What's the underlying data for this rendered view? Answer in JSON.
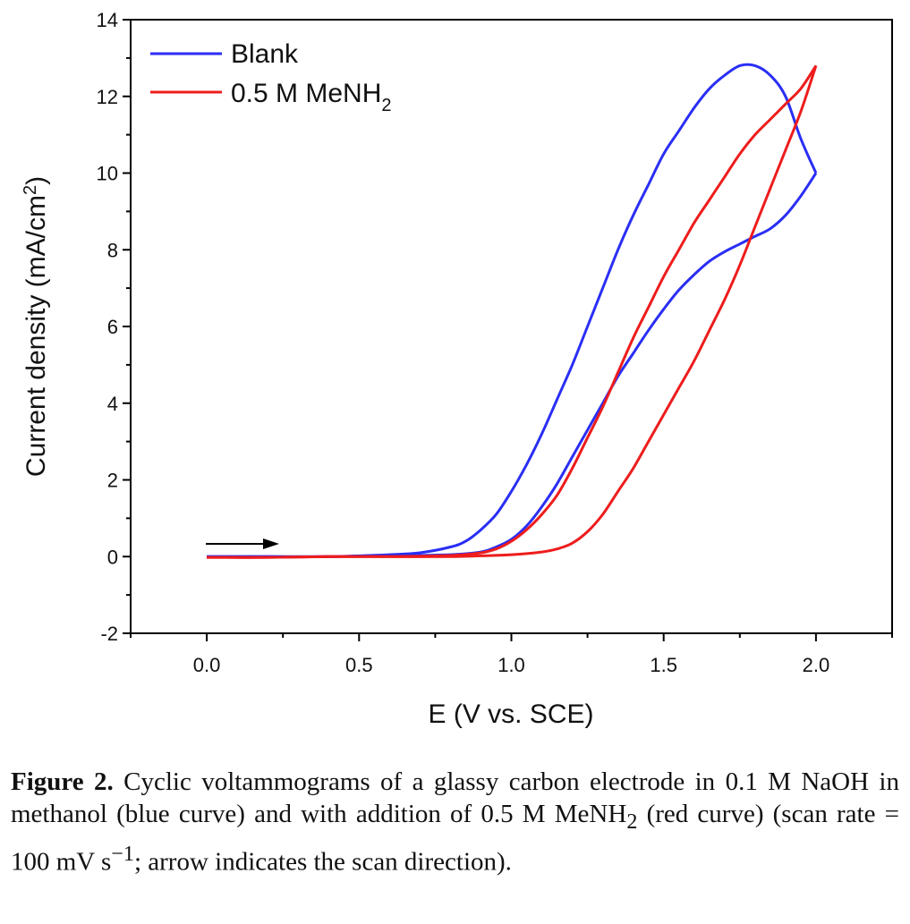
{
  "chart_data": {
    "type": "line",
    "xlabel": "E (V vs. SCE)",
    "ylabel": "Current density (mA/cm",
    "ylabel_sup": "2",
    "ylabel_end": ")",
    "xlim": [
      -0.25,
      2.25
    ],
    "ylim": [
      -2,
      14
    ],
    "xticks": [
      "0.0",
      "0.5",
      "1.0",
      "1.5",
      "2.0"
    ],
    "yticks": [
      "-2",
      "0",
      "2",
      "4",
      "6",
      "8",
      "10",
      "12",
      "14"
    ],
    "legend_position": "top-left",
    "series": [
      {
        "name": "Blank",
        "name_sub": "",
        "color": "#2a2ef5",
        "forward": [
          [
            0.0,
            0.0
          ],
          [
            0.2,
            0.0
          ],
          [
            0.4,
            0.0
          ],
          [
            0.6,
            0.05
          ],
          [
            0.7,
            0.1
          ],
          [
            0.8,
            0.25
          ],
          [
            0.85,
            0.4
          ],
          [
            0.9,
            0.7
          ],
          [
            0.95,
            1.1
          ],
          [
            1.0,
            1.7
          ],
          [
            1.05,
            2.4
          ],
          [
            1.1,
            3.2
          ],
          [
            1.15,
            4.1
          ],
          [
            1.2,
            5.0
          ],
          [
            1.25,
            6.0
          ],
          [
            1.3,
            7.0
          ],
          [
            1.35,
            8.0
          ],
          [
            1.4,
            8.9
          ],
          [
            1.45,
            9.7
          ],
          [
            1.5,
            10.5
          ],
          [
            1.55,
            11.1
          ],
          [
            1.6,
            11.7
          ],
          [
            1.65,
            12.2
          ],
          [
            1.7,
            12.55
          ],
          [
            1.75,
            12.8
          ],
          [
            1.8,
            12.8
          ],
          [
            1.85,
            12.55
          ],
          [
            1.9,
            12.0
          ],
          [
            1.95,
            10.9
          ],
          [
            2.0,
            10.0
          ]
        ],
        "reverse": [
          [
            2.0,
            10.0
          ],
          [
            1.95,
            9.4
          ],
          [
            1.9,
            8.9
          ],
          [
            1.85,
            8.55
          ],
          [
            1.8,
            8.35
          ],
          [
            1.75,
            8.15
          ],
          [
            1.7,
            7.95
          ],
          [
            1.65,
            7.7
          ],
          [
            1.6,
            7.35
          ],
          [
            1.55,
            6.95
          ],
          [
            1.5,
            6.45
          ],
          [
            1.45,
            5.9
          ],
          [
            1.4,
            5.3
          ],
          [
            1.35,
            4.7
          ],
          [
            1.3,
            4.0
          ],
          [
            1.25,
            3.3
          ],
          [
            1.2,
            2.6
          ],
          [
            1.15,
            1.9
          ],
          [
            1.1,
            1.3
          ],
          [
            1.05,
            0.8
          ],
          [
            1.0,
            0.45
          ],
          [
            0.95,
            0.25
          ],
          [
            0.9,
            0.12
          ],
          [
            0.8,
            0.05
          ],
          [
            0.6,
            0.02
          ],
          [
            0.4,
            0.0
          ],
          [
            0.2,
            0.0
          ],
          [
            0.0,
            0.0
          ]
        ]
      },
      {
        "name": "0.5 M MeNH",
        "name_sub": "2",
        "color": "#ee1c1c",
        "forward": [
          [
            0.0,
            -0.02
          ],
          [
            0.2,
            -0.02
          ],
          [
            0.4,
            0.0
          ],
          [
            0.6,
            0.0
          ],
          [
            0.8,
            0.03
          ],
          [
            0.9,
            0.1
          ],
          [
            0.95,
            0.2
          ],
          [
            1.0,
            0.4
          ],
          [
            1.05,
            0.7
          ],
          [
            1.1,
            1.1
          ],
          [
            1.15,
            1.6
          ],
          [
            1.2,
            2.3
          ],
          [
            1.25,
            3.1
          ],
          [
            1.3,
            3.9
          ],
          [
            1.35,
            4.8
          ],
          [
            1.4,
            5.7
          ],
          [
            1.45,
            6.5
          ],
          [
            1.5,
            7.3
          ],
          [
            1.55,
            8.0
          ],
          [
            1.6,
            8.7
          ],
          [
            1.65,
            9.3
          ],
          [
            1.7,
            9.9
          ],
          [
            1.75,
            10.5
          ],
          [
            1.8,
            11.0
          ],
          [
            1.85,
            11.4
          ],
          [
            1.9,
            11.8
          ],
          [
            1.95,
            12.2
          ],
          [
            2.0,
            12.8
          ]
        ],
        "reverse": [
          [
            2.0,
            12.8
          ],
          [
            1.95,
            11.6
          ],
          [
            1.9,
            10.6
          ],
          [
            1.85,
            9.6
          ],
          [
            1.8,
            8.6
          ],
          [
            1.75,
            7.6
          ],
          [
            1.7,
            6.7
          ],
          [
            1.65,
            5.9
          ],
          [
            1.6,
            5.1
          ],
          [
            1.55,
            4.4
          ],
          [
            1.5,
            3.7
          ],
          [
            1.45,
            3.0
          ],
          [
            1.4,
            2.3
          ],
          [
            1.35,
            1.7
          ],
          [
            1.3,
            1.1
          ],
          [
            1.25,
            0.65
          ],
          [
            1.2,
            0.35
          ],
          [
            1.15,
            0.2
          ],
          [
            1.1,
            0.12
          ],
          [
            1.0,
            0.05
          ],
          [
            0.9,
            0.02
          ],
          [
            0.8,
            0.0
          ],
          [
            0.6,
            0.0
          ],
          [
            0.4,
            0.0
          ],
          [
            0.2,
            -0.02
          ],
          [
            0.0,
            -0.02
          ]
        ]
      }
    ],
    "annotation": "scan-direction-arrow"
  },
  "caption": {
    "label": "Figure 2.",
    "text1": " Cyclic voltammograms of a glassy carbon electrode in 0.1 M NaOH in methanol (blue curve) and with addition of 0.5 M MeNH",
    "sub": "2",
    "text2": " (red curve) (scan rate = 100 mV s",
    "sup": "−1",
    "text3": "; arrow indicates the scan direction)."
  }
}
